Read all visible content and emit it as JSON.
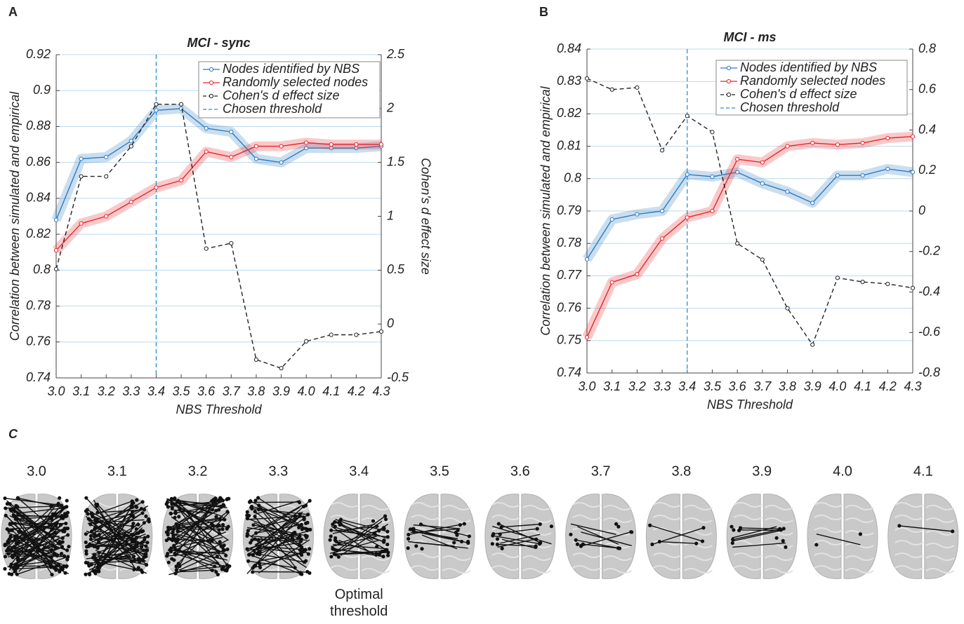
{
  "chart_data": [
    {
      "type": "line",
      "panel": "A",
      "title": "MCI - sync",
      "x_label": "NBS Threshold",
      "y_label": "Correlation between simulated and empirical",
      "y2_label": "Cohen's d effect size",
      "x": [
        3.0,
        3.1,
        3.2,
        3.3,
        3.4,
        3.5,
        3.6,
        3.7,
        3.8,
        3.9,
        4.0,
        4.1,
        4.2,
        4.3
      ],
      "xlim": [
        3.0,
        4.3
      ],
      "xticks": [
        {
          "value": 3,
          "label": "3.0"
        },
        3.1,
        3.2,
        3.3,
        3.4,
        3.5,
        3.6,
        3.7,
        3.8,
        3.9,
        {
          "value": 4,
          "label": "4.0"
        },
        4.1,
        4.2,
        4.3
      ],
      "ylim": [
        0.74,
        0.92
      ],
      "yticks": [
        0.74,
        0.76,
        0.78,
        0.8,
        0.82,
        0.84,
        0.86,
        0.88,
        0.9,
        0.92
      ],
      "y2lim": [
        -0.5,
        2.5
      ],
      "y2ticks": [
        -0.5,
        0,
        0.5,
        1,
        1.5,
        2,
        2.5
      ],
      "grid": true,
      "legend": "upper-right",
      "series": [
        {
          "name": "Nodes identified by NBS",
          "color": "#2b7bc0",
          "shaded": true,
          "values": [
            0.828,
            0.862,
            0.863,
            0.872,
            0.889,
            0.89,
            0.879,
            0.877,
            0.862,
            0.86,
            0.868,
            0.868,
            0.868,
            0.869
          ]
        },
        {
          "name": "Randomly selected nodes",
          "color": "#e8262b",
          "shaded": true,
          "values": [
            0.811,
            0.826,
            0.83,
            0.838,
            0.846,
            0.85,
            0.866,
            0.863,
            0.869,
            0.869,
            0.871,
            0.87,
            0.87,
            0.87
          ]
        },
        {
          "name": "Cohen's d effect size",
          "color": "#222222",
          "axis": "y2",
          "linestyle": "dashed",
          "values": [
            0.51,
            1.37,
            1.37,
            1.65,
            2.04,
            2.04,
            0.7,
            0.75,
            -0.33,
            -0.41,
            -0.16,
            -0.1,
            -0.1,
            -0.07
          ]
        }
      ],
      "reference_line": {
        "name": "Chosen threshold",
        "x": 3.4,
        "color": "#2b8fd0"
      }
    },
    {
      "type": "line",
      "panel": "B",
      "title": "MCI - ms",
      "x_label": "NBS Threshold",
      "y_label": "Correlation between simulated and empirical",
      "x": [
        3.0,
        3.1,
        3.2,
        3.3,
        3.4,
        3.5,
        3.6,
        3.7,
        3.8,
        3.9,
        4.0,
        4.1,
        4.2,
        4.3
      ],
      "xlim": [
        3.0,
        4.3
      ],
      "xticks": [
        {
          "value": 3,
          "label": "3.0"
        },
        3.1,
        3.2,
        3.3,
        3.4,
        3.5,
        3.6,
        3.7,
        3.8,
        3.9,
        {
          "value": 4,
          "label": "4.0"
        },
        4.1,
        4.2,
        4.3
      ],
      "ylim": [
        0.74,
        0.84
      ],
      "yticks": [
        0.74,
        0.75,
        0.76,
        0.77,
        0.78,
        0.79,
        0.8,
        0.81,
        0.82,
        0.83,
        0.84
      ],
      "y2lim": [
        -0.8,
        0.8
      ],
      "y2ticks": [
        -0.8,
        -0.6,
        -0.4,
        -0.2,
        0,
        0.2,
        0.4,
        0.6,
        0.8
      ],
      "grid": true,
      "legend": "upper-right",
      "series": [
        {
          "name": "Nodes identified by NBS",
          "color": "#2b7bc0",
          "shaded": true,
          "values": [
            0.7751,
            0.7874,
            0.789,
            0.79,
            0.8013,
            0.8006,
            0.802,
            0.7985,
            0.796,
            0.7925,
            0.801,
            0.801,
            0.803,
            0.802
          ]
        },
        {
          "name": "Randomly selected nodes",
          "color": "#e8262b",
          "shaded": true,
          "values": [
            0.751,
            0.768,
            0.7705,
            0.7815,
            0.788,
            0.79,
            0.806,
            0.805,
            0.81,
            0.811,
            0.8105,
            0.811,
            0.8125,
            0.813
          ]
        },
        {
          "name": "Cohen's d effect size",
          "color": "#222222",
          "axis": "y2",
          "linestyle": "dashed",
          "values": [
            0.655,
            0.6,
            0.61,
            0.3,
            0.47,
            0.39,
            -0.16,
            -0.24,
            -0.48,
            -0.66,
            -0.33,
            -0.35,
            -0.36,
            -0.38
          ]
        }
      ],
      "reference_line": {
        "name": "Chosen threshold",
        "x": 3.4,
        "color": "#2b8fd0"
      }
    }
  ],
  "panel_c": {
    "panel": "C",
    "brains": [
      {
        "label": "3.0"
      },
      {
        "label": "3.1"
      },
      {
        "label": "3.2"
      },
      {
        "label": "3.3"
      },
      {
        "label": "3.4",
        "note": "Optimal threshold"
      },
      {
        "label": "3.5"
      },
      {
        "label": "3.6"
      },
      {
        "label": "3.7"
      },
      {
        "label": "3.8"
      },
      {
        "label": "3.9"
      },
      {
        "label": "4.0"
      },
      {
        "label": "4.1"
      }
    ]
  }
}
